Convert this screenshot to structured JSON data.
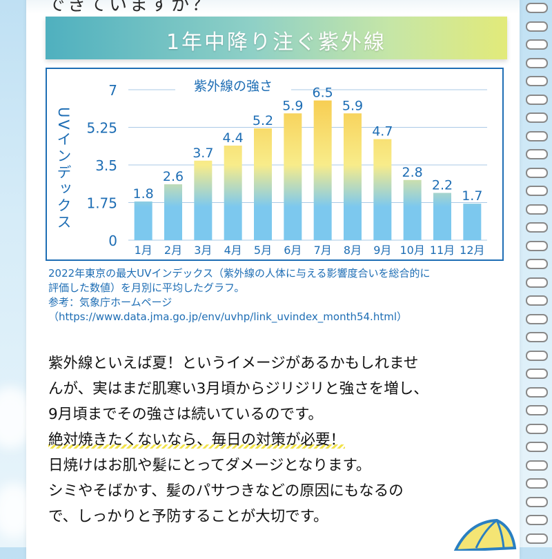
{
  "header": {
    "cut_heading": "できていますか？",
    "banner_title": "1年中降り注ぐ紫外線"
  },
  "chart_data": {
    "type": "bar",
    "title": "紫外線の強さ",
    "ylabel": "UVインデックス",
    "xlabel": "",
    "categories": [
      "1月",
      "2月",
      "3月",
      "4月",
      "5月",
      "6月",
      "7月",
      "8月",
      "9月",
      "10月",
      "11月",
      "12月"
    ],
    "values": [
      1.8,
      2.6,
      3.7,
      4.4,
      5.2,
      5.9,
      6.5,
      5.9,
      4.7,
      2.8,
      2.2,
      1.7
    ],
    "ylim": [
      0,
      7
    ],
    "yticks": [
      0,
      1.75,
      3.5,
      5.25,
      7
    ],
    "ytick_labels": [
      "0",
      "1.75",
      "3.5",
      "5.25",
      "7"
    ],
    "grid": true,
    "colors": {
      "low": "#7cc8ee",
      "mid": "#f8ec8a",
      "high": "#f7c94a",
      "text": "#1d6db4",
      "grid": "#a9c9e6"
    }
  },
  "caption": {
    "line1": "2022年東京の最大UVインデックス（紫外線の人体に与える影響度合いを総合的に",
    "line2": "評価した数値）を月別に平均したグラフ。",
    "line3": "参考：気象庁ホームページ",
    "line4": "（https://www.data.jma.go.jp/env/uvhp/link_uvindex_month54.html）"
  },
  "body": {
    "line1": "紫外線といえば夏！というイメージがあるかもしれませ",
    "line2": "んが、実はまだ肌寒い3月頃からジリジリと強さを増し、",
    "line3": "9月頃までその強さは続いているのです。",
    "line4": "絶対焼きたくないなら、毎日の対策が必要！",
    "line5": "日焼けはお肌や髪にとってダメージとなります。",
    "line6": "シミやそばかす、髪のパサつきなどの原因にもなるの",
    "line7": "で、しっかりと予防することが大切です。"
  }
}
